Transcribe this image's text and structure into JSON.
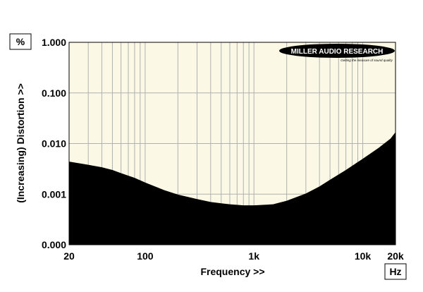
{
  "chart_data": {
    "type": "area",
    "title": "",
    "xlabel": "Frequency >>",
    "ylabel": "(Increasing) Distortion >>",
    "x_unit_box": "Hz",
    "y_unit_box": "%",
    "x_scale": "log",
    "y_scale": "log",
    "xlim": [
      20,
      20000
    ],
    "x_tick_labels": [
      {
        "value": 20,
        "label": "20"
      },
      {
        "value": 100,
        "label": "100"
      },
      {
        "value": 1000,
        "label": "1k"
      },
      {
        "value": 10000,
        "label": "10k"
      },
      {
        "value": 20000,
        "label": "20k"
      }
    ],
    "y_tick_labels": [
      "1.000",
      "0.100",
      "0.010",
      "0.001",
      "0.000"
    ],
    "y_tick_values": [
      1.0,
      0.1,
      0.01,
      0.001,
      0.0001
    ],
    "grid": true,
    "series": [
      {
        "x": [
          20,
          30,
          40,
          50,
          60,
          80,
          100,
          150,
          200,
          300,
          400,
          500,
          600,
          800,
          1000,
          1500,
          2000,
          3000,
          4000,
          5000,
          7000,
          10000,
          14000,
          18000,
          20000
        ],
        "y": [
          0.0044,
          0.0038,
          0.0034,
          0.003,
          0.0026,
          0.0021,
          0.0017,
          0.0012,
          0.00098,
          0.0008,
          0.0007,
          0.00066,
          0.00063,
          0.0006,
          0.0006,
          0.00063,
          0.00074,
          0.00103,
          0.00142,
          0.00192,
          0.003,
          0.005,
          0.0082,
          0.0125,
          0.0168
        ]
      }
    ],
    "colors": {
      "plot_background": "#fbf9e6",
      "fill": "#000000",
      "grid": "#b0b0b0"
    },
    "logo": {
      "name": "MILLER AUDIO RESEARCH",
      "tagline": "Getting the measure of sound quality"
    }
  }
}
